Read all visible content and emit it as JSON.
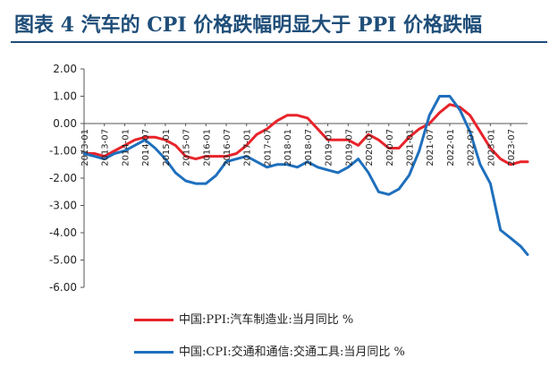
{
  "title": "图表 4   汽车的 CPI 价格跌幅明显大于 PPI 价格跌幅",
  "chart_data": {
    "type": "line",
    "ylim": [
      -6,
      2
    ],
    "yticks": [
      2,
      1,
      0,
      -1,
      -2,
      -3,
      -4,
      -5,
      -6
    ],
    "ytick_labels": [
      "2.00",
      "1.00",
      "0.00",
      "-1.00",
      "-2.00",
      "-3.00",
      "-4.00",
      "-5.00",
      "-6.00"
    ],
    "x_start": "2013-01",
    "x_end": "2023-12",
    "xtick_labels": [
      "2013-01",
      "2013-07",
      "2014-01",
      "2014-07",
      "2015-01",
      "2015-07",
      "2016-01",
      "2016-07",
      "2017-01",
      "2017-07",
      "2018-01",
      "2018-07",
      "2019-01",
      "2019-07",
      "2020-01",
      "2020-07",
      "2021-01",
      "2021-07",
      "2022-01",
      "2022-07",
      "2023-01",
      "2023-07"
    ],
    "grid": false,
    "legend_position": "bottom",
    "series": [
      {
        "name": "中国:PPI:汽车制造业:当月同比 %",
        "color": "#e8232a",
        "points": [
          [
            "2013-01",
            -1.1
          ],
          [
            "2013-04",
            -1.1
          ],
          [
            "2013-07",
            -1.2
          ],
          [
            "2013-10",
            -1.0
          ],
          [
            "2014-01",
            -0.8
          ],
          [
            "2014-04",
            -0.6
          ],
          [
            "2014-07",
            -0.5
          ],
          [
            "2014-10",
            -0.5
          ],
          [
            "2015-01",
            -0.6
          ],
          [
            "2015-04",
            -0.8
          ],
          [
            "2015-07",
            -1.2
          ],
          [
            "2015-10",
            -1.3
          ],
          [
            "2016-01",
            -1.2
          ],
          [
            "2016-04",
            -1.2
          ],
          [
            "2016-07",
            -1.2
          ],
          [
            "2016-10",
            -1.1
          ],
          [
            "2017-01",
            -0.8
          ],
          [
            "2017-04",
            -0.4
          ],
          [
            "2017-07",
            -0.2
          ],
          [
            "2017-10",
            0.1
          ],
          [
            "2018-01",
            0.3
          ],
          [
            "2018-04",
            0.3
          ],
          [
            "2018-07",
            0.2
          ],
          [
            "2018-10",
            -0.2
          ],
          [
            "2019-01",
            -0.6
          ],
          [
            "2019-04",
            -0.6
          ],
          [
            "2019-07",
            -0.6
          ],
          [
            "2019-10",
            -0.8
          ],
          [
            "2020-01",
            -0.4
          ],
          [
            "2020-04",
            -0.6
          ],
          [
            "2020-07",
            -0.9
          ],
          [
            "2020-10",
            -0.9
          ],
          [
            "2021-01",
            -0.5
          ],
          [
            "2021-04",
            -0.2
          ],
          [
            "2021-07",
            0.0
          ],
          [
            "2021-10",
            0.4
          ],
          [
            "2022-01",
            0.7
          ],
          [
            "2022-04",
            0.6
          ],
          [
            "2022-07",
            0.3
          ],
          [
            "2022-10",
            -0.3
          ],
          [
            "2023-01",
            -0.9
          ],
          [
            "2023-04",
            -1.3
          ],
          [
            "2023-07",
            -1.5
          ],
          [
            "2023-10",
            -1.4
          ],
          [
            "2023-12",
            -1.4
          ]
        ]
      },
      {
        "name": "中国:CPI:交通和通信:交通工具:当月同比 %",
        "color": "#1e6fbd",
        "points": [
          [
            "2013-01",
            -1.1
          ],
          [
            "2013-04",
            -1.2
          ],
          [
            "2013-07",
            -1.3
          ],
          [
            "2013-10",
            -1.1
          ],
          [
            "2014-01",
            -1.0
          ],
          [
            "2014-04",
            -0.8
          ],
          [
            "2014-07",
            -0.6
          ],
          [
            "2014-10",
            -0.9
          ],
          [
            "2015-01",
            -1.3
          ],
          [
            "2015-04",
            -1.8
          ],
          [
            "2015-07",
            -2.1
          ],
          [
            "2015-10",
            -2.2
          ],
          [
            "2016-01",
            -2.2
          ],
          [
            "2016-04",
            -1.9
          ],
          [
            "2016-07",
            -1.4
          ],
          [
            "2016-10",
            -1.3
          ],
          [
            "2017-01",
            -1.2
          ],
          [
            "2017-04",
            -1.4
          ],
          [
            "2017-07",
            -1.6
          ],
          [
            "2017-10",
            -1.5
          ],
          [
            "2018-01",
            -1.5
          ],
          [
            "2018-04",
            -1.6
          ],
          [
            "2018-07",
            -1.4
          ],
          [
            "2018-10",
            -1.6
          ],
          [
            "2019-01",
            -1.7
          ],
          [
            "2019-04",
            -1.8
          ],
          [
            "2019-07",
            -1.6
          ],
          [
            "2019-10",
            -1.3
          ],
          [
            "2020-01",
            -1.8
          ],
          [
            "2020-04",
            -2.5
          ],
          [
            "2020-07",
            -2.6
          ],
          [
            "2020-10",
            -2.4
          ],
          [
            "2021-01",
            -1.9
          ],
          [
            "2021-04",
            -1.0
          ],
          [
            "2021-07",
            0.3
          ],
          [
            "2021-10",
            1.0
          ],
          [
            "2022-01",
            1.0
          ],
          [
            "2022-04",
            0.5
          ],
          [
            "2022-07",
            -0.3
          ],
          [
            "2022-10",
            -1.5
          ],
          [
            "2023-01",
            -2.2
          ],
          [
            "2023-04",
            -3.9
          ],
          [
            "2023-07",
            -4.2
          ],
          [
            "2023-10",
            -4.5
          ],
          [
            "2023-12",
            -4.8
          ]
        ]
      }
    ]
  }
}
